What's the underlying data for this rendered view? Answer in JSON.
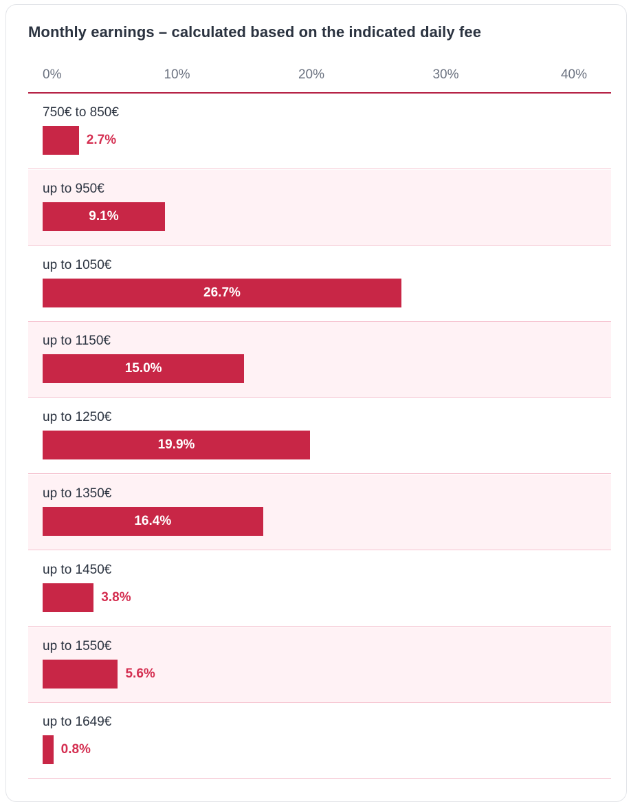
{
  "chart_data": {
    "type": "bar",
    "orientation": "horizontal",
    "title": "Monthly earnings – calculated based on the indicated daily fee",
    "xlim": [
      0,
      40
    ],
    "ticks": [
      "0%",
      "10%",
      "20%",
      "30%",
      "40%"
    ],
    "tick_values": [
      0,
      10,
      20,
      30,
      40
    ],
    "categories": [
      "750€ to 850€",
      "up to 950€",
      "up to 1050€",
      "up to 1150€",
      "up to 1250€",
      "up to 1350€",
      "up to 1450€",
      "up to 1550€",
      "up to 1649€"
    ],
    "values": [
      2.7,
      9.1,
      26.7,
      15.0,
      19.9,
      16.4,
      3.8,
      5.6,
      0.8
    ],
    "value_labels": [
      "2.7%",
      "9.1%",
      "26.7%",
      "15.0%",
      "19.9%",
      "16.4%",
      "3.8%",
      "5.6%",
      "0.8%"
    ],
    "grid": false,
    "colors": {
      "bar": "#c82646",
      "axis": "#b51f43",
      "row_alt": "#fff2f5",
      "label_outside": "#d42e50",
      "label_inside": "#ffffff"
    }
  }
}
